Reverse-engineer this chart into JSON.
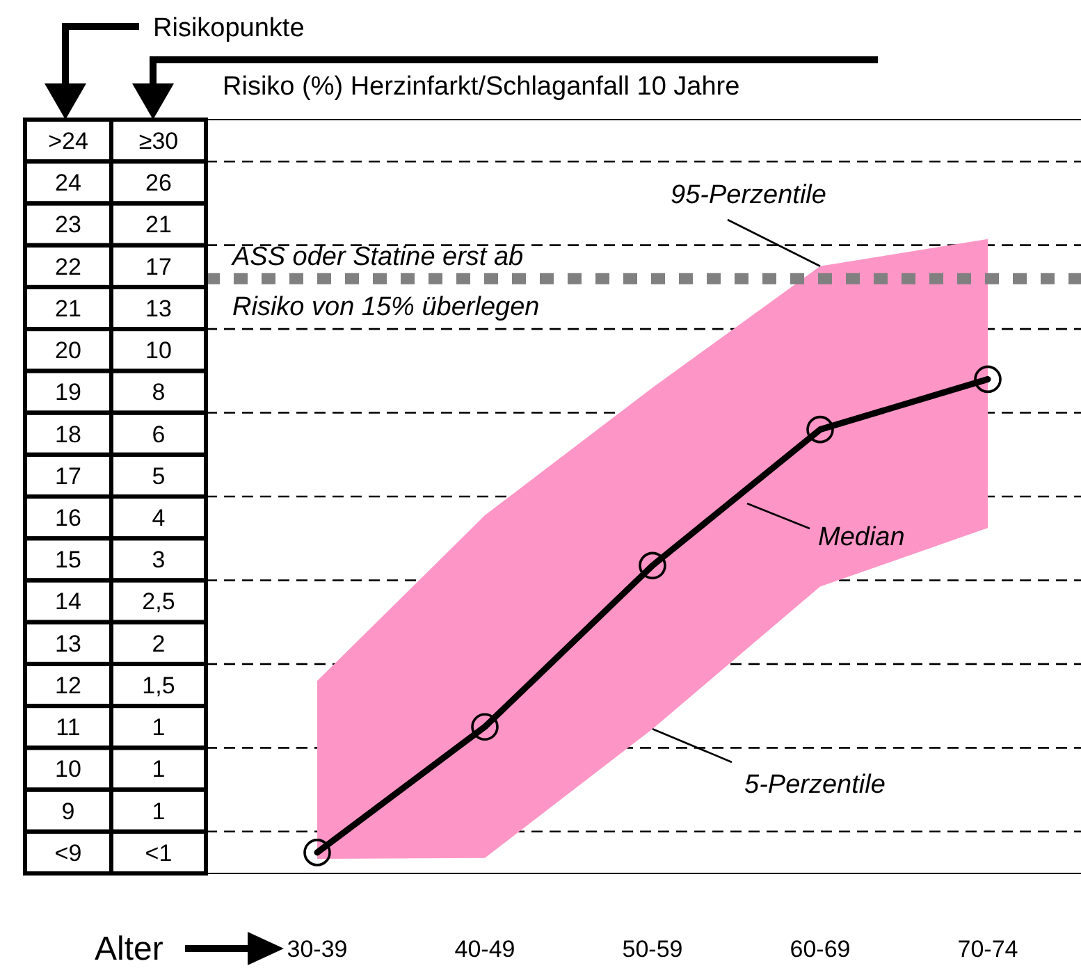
{
  "chart_data": {
    "type": "line",
    "xlabel": "Alter",
    "ylabel": "Risikopunkte",
    "y2label": "Risiko (%) Herzinfarkt/Schlaganfall 10 Jahre",
    "categories": [
      "30-39",
      "40-49",
      "50-59",
      "60-69",
      "70-74"
    ],
    "ylim": [
      7.5,
      25.5
    ],
    "yticks": [
      {
        "value": 8,
        "label": "<9"
      },
      9,
      10,
      11,
      12,
      13,
      14,
      15,
      16,
      17,
      18,
      19,
      20,
      21,
      22,
      23,
      24,
      {
        "value": 25,
        "label": ">24"
      }
    ],
    "series": [
      {
        "color": "#000000",
        "values": [
          8.0,
          11.0,
          14.85,
          18.1,
          19.3
        ],
        "lower": [
          7.85,
          7.87,
          10.95,
          14.35,
          15.75
        ],
        "upper": [
          12.1,
          16.05,
          19.1,
          22.0,
          22.65
        ]
      }
    ],
    "marker": "circle",
    "line_style": "solid",
    "ref_lines": [
      {
        "axis": "y",
        "value": 8.5,
        "color": "#000000",
        "line_style": "dashed"
      },
      {
        "axis": "y",
        "value": 10.5,
        "color": "#000000",
        "line_style": "dashed"
      },
      {
        "axis": "y",
        "value": 12.5,
        "color": "#000000",
        "line_style": "dashed"
      },
      {
        "axis": "y",
        "value": 14.5,
        "color": "#000000",
        "line_style": "dashed"
      },
      {
        "axis": "y",
        "value": 16.5,
        "color": "#000000",
        "line_style": "dashed"
      },
      {
        "axis": "y",
        "value": 18.5,
        "color": "#000000",
        "line_style": "dashed"
      },
      {
        "axis": "y",
        "value": 20.5,
        "color": "#000000",
        "line_style": "dashed"
      },
      {
        "axis": "y",
        "value": 22.5,
        "color": "#000000",
        "line_style": "dashed"
      },
      {
        "axis": "y",
        "value": 24.5,
        "color": "#000000",
        "line_style": "dashed"
      },
      {
        "axis": "y",
        "value": 21.7,
        "label": "ASS oder Statine erst ab Risiko von 15% überlegen",
        "color": "#808080",
        "line_style": "dotted"
      }
    ],
    "annotations": [
      {
        "text": "95-Perzentile",
        "x": "60-69",
        "y": 22.0
      },
      "Median",
      {
        "text": "5-Perzentile",
        "x": "50-59",
        "y": 10.95
      },
      "<1",
      "1",
      "1",
      "1",
      "1,5",
      "2",
      "2,5",
      "3",
      "4",
      "5",
      "6",
      "8",
      "10",
      "13",
      "17",
      "21",
      "26",
      "≥30"
    ]
  }
}
